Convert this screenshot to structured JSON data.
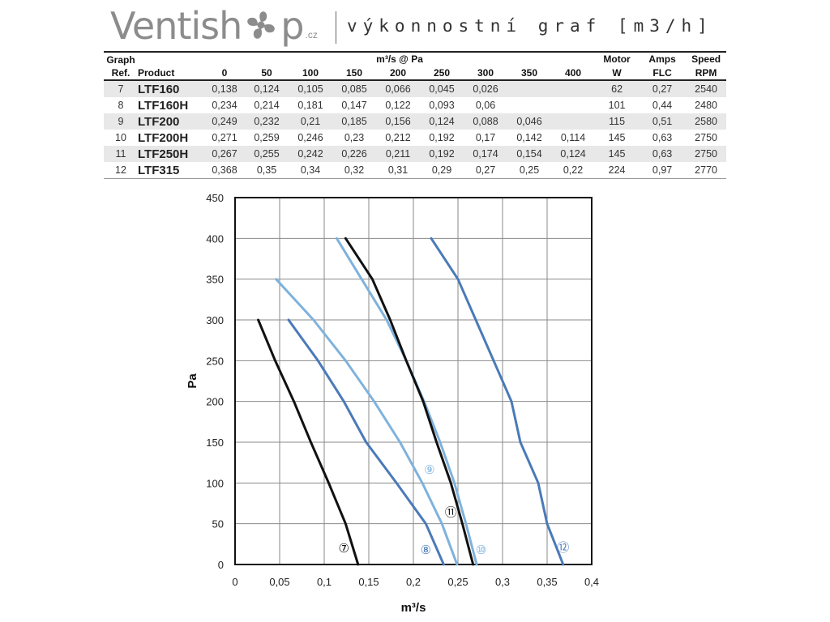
{
  "header": {
    "logo_text_a": "Ventish",
    "logo_text_b": "p",
    "logo_cz": ".cz",
    "subtitle": "výkonnostní graf [m3/h]"
  },
  "table": {
    "header_graph": "Graph",
    "header_ref": "Ref.",
    "header_product": "Product",
    "header_group": "m³/s @ Pa",
    "pressures": [
      "0",
      "50",
      "100",
      "150",
      "200",
      "250",
      "300",
      "350",
      "400"
    ],
    "header_motor": "Motor",
    "header_motor_unit": "W",
    "header_amps": "Amps",
    "header_amps_unit": "FLC",
    "header_speed": "Speed",
    "header_speed_unit": "RPM",
    "rows": [
      {
        "ref": "7",
        "product": "LTF160",
        "values": [
          "0,138",
          "0,124",
          "0,105",
          "0,085",
          "0,066",
          "0,045",
          "0,026",
          "",
          ""
        ],
        "motor": "62",
        "amps": "0,27",
        "speed": "2540"
      },
      {
        "ref": "8",
        "product": "LTF160H",
        "values": [
          "0,234",
          "0,214",
          "0,181",
          "0,147",
          "0,122",
          "0,093",
          "0,06",
          "",
          ""
        ],
        "motor": "101",
        "amps": "0,44",
        "speed": "2480"
      },
      {
        "ref": "9",
        "product": "LTF200",
        "values": [
          "0,249",
          "0,232",
          "0,21",
          "0,185",
          "0,156",
          "0,124",
          "0,088",
          "0,046",
          ""
        ],
        "motor": "115",
        "amps": "0,51",
        "speed": "2580"
      },
      {
        "ref": "10",
        "product": "LTF200H",
        "values": [
          "0,271",
          "0,259",
          "0,246",
          "0,23",
          "0,212",
          "0,192",
          "0,17",
          "0,142",
          "0,114"
        ],
        "motor": "145",
        "amps": "0,63",
        "speed": "2750"
      },
      {
        "ref": "11",
        "product": "LTF250H",
        "values": [
          "0,267",
          "0,255",
          "0,242",
          "0,226",
          "0,211",
          "0,192",
          "0,174",
          "0,154",
          "0,124"
        ],
        "motor": "145",
        "amps": "0,63",
        "speed": "2750"
      },
      {
        "ref": "12",
        "product": "LTF315",
        "values": [
          "0,368",
          "0,35",
          "0,34",
          "0,32",
          "0,31",
          "0,29",
          "0,27",
          "0,25",
          "0,22"
        ],
        "motor": "224",
        "amps": "0,97",
        "speed": "2770"
      }
    ]
  },
  "chart_data": {
    "type": "line",
    "xlabel": "m³/s",
    "ylabel": "Pa",
    "xlim": [
      0,
      0.4
    ],
    "ylim": [
      0,
      450
    ],
    "xticks": [
      0,
      0.05,
      0.1,
      0.15,
      0.2,
      0.25,
      0.3,
      0.35,
      0.4
    ],
    "xtick_labels": [
      "0",
      "0,05",
      "0,1",
      "0,15",
      "0,2",
      "0,25",
      "0,3",
      "0,35",
      "0,4"
    ],
    "yticks": [
      0,
      50,
      100,
      150,
      200,
      250,
      300,
      350,
      400,
      450
    ],
    "ytick_labels": [
      "0",
      "50",
      "100",
      "150",
      "200",
      "250",
      "300",
      "350",
      "400",
      "450"
    ],
    "grid": true,
    "series": [
      {
        "name": "⑦",
        "color": "#111111",
        "x": [
          0.138,
          0.124,
          0.105,
          0.085,
          0.066,
          0.045,
          0.026
        ],
        "y": [
          0,
          50,
          100,
          150,
          200,
          250,
          300
        ],
        "label_at": [
          0.122,
          20
        ]
      },
      {
        "name": "⑧",
        "color": "#4a7ab8",
        "x": [
          0.234,
          0.214,
          0.181,
          0.147,
          0.122,
          0.093,
          0.06
        ],
        "y": [
          0,
          50,
          100,
          150,
          200,
          250,
          300
        ],
        "label_at": [
          0.214,
          18
        ]
      },
      {
        "name": "⑨",
        "color": "#7fb2dc",
        "x": [
          0.249,
          0.232,
          0.21,
          0.185,
          0.156,
          0.124,
          0.088,
          0.046
        ],
        "y": [
          0,
          50,
          100,
          150,
          200,
          250,
          300,
          350
        ],
        "label_at": [
          0.218,
          116
        ]
      },
      {
        "name": "⑩",
        "color": "#7fb2dc",
        "x": [
          0.271,
          0.259,
          0.246,
          0.23,
          0.212,
          0.192,
          0.17,
          0.142,
          0.114
        ],
        "y": [
          0,
          50,
          100,
          150,
          200,
          250,
          300,
          350,
          400
        ],
        "label_at": [
          0.276,
          18
        ]
      },
      {
        "name": "⑪",
        "color": "#111111",
        "x": [
          0.267,
          0.255,
          0.242,
          0.226,
          0.211,
          0.192,
          0.174,
          0.154,
          0.124
        ],
        "y": [
          0,
          50,
          100,
          150,
          200,
          250,
          300,
          350,
          400
        ],
        "label_at": [
          0.242,
          64
        ]
      },
      {
        "name": "⑫",
        "color": "#4a7ab8",
        "x": [
          0.368,
          0.35,
          0.34,
          0.32,
          0.31,
          0.29,
          0.27,
          0.25,
          0.22
        ],
        "y": [
          0,
          50,
          100,
          150,
          200,
          250,
          300,
          350,
          400
        ],
        "label_at": [
          0.368,
          21
        ]
      }
    ]
  }
}
